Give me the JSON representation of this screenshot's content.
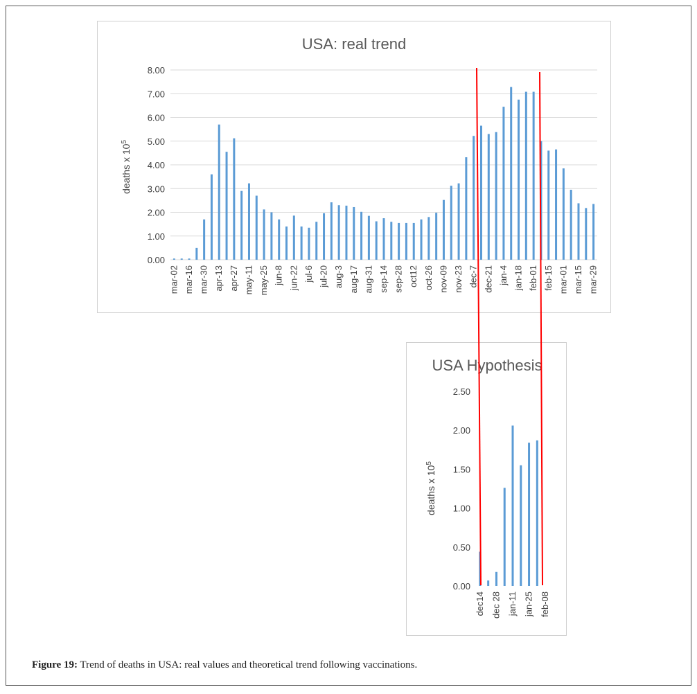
{
  "figure": {
    "caption_label": "Figure 19:",
    "caption_text": " Trend of deaths in USA: real values and theoretical trend following vaccinations."
  },
  "colors": {
    "bar": "#5b9bd5",
    "marker_line": "#ff0000",
    "grid": "#d9d9d9"
  },
  "chart_data": [
    {
      "type": "bar",
      "title": "USA: real trend",
      "xlabel": "",
      "ylabel": "deaths x 10",
      "ylabel_superscript": "5",
      "ylim": [
        0,
        8
      ],
      "ytick_step": 1,
      "ytick_labels": [
        "0.00",
        "1.00",
        "2.00",
        "3.00",
        "4.00",
        "5.00",
        "6.00",
        "7.00",
        "8.00"
      ],
      "grid": true,
      "values": [
        0.05,
        0.05,
        0.05,
        0.5,
        1.7,
        3.6,
        5.7,
        4.55,
        5.12,
        2.9,
        3.22,
        2.7,
        2.12,
        2.0,
        1.7,
        1.4,
        1.86,
        1.4,
        1.35,
        1.6,
        1.96,
        2.42,
        2.3,
        2.28,
        2.22,
        2.02,
        1.85,
        1.62,
        1.75,
        1.6,
        1.55,
        1.55,
        1.55,
        1.7,
        1.8,
        1.98,
        2.52,
        3.12,
        3.22,
        4.32,
        5.22,
        5.65,
        5.3,
        5.38,
        6.45,
        7.28,
        6.75,
        7.08,
        7.08,
        5.0,
        4.6,
        4.65,
        3.85,
        2.95,
        2.38,
        2.18,
        2.35
      ],
      "category_labels": [
        "mar-02",
        "mar-16",
        "mar-30",
        "apr-13",
        "apr-27",
        "may-11",
        "may-25",
        "jun-8",
        "jun-22",
        "jul-6",
        "jul-20",
        "aug-3",
        "aug-17",
        "aug-31",
        "sep-14",
        "sep-28",
        "oct12",
        "oct-26",
        "nov-09",
        "nov-23",
        "dec-7",
        "dec-21",
        "jan-4",
        "jan-18",
        "feb-01",
        "feb-15",
        "mar-01",
        "mar-15",
        "mar-29"
      ],
      "label_every": 2
    },
    {
      "type": "bar",
      "title": "USA Hypothesis",
      "xlabel": "",
      "ylabel": "deaths x 10",
      "ylabel_superscript": "5",
      "ylim": [
        0,
        2.5
      ],
      "ytick_step": 0.5,
      "ytick_labels": [
        "0.00",
        "0.50",
        "1.00",
        "1.50",
        "2.00",
        "2.50"
      ],
      "grid": false,
      "values": [
        0.44,
        0.07,
        0.18,
        1.26,
        2.06,
        1.55,
        1.84,
        1.87,
        0.0
      ],
      "category_labels": [
        "dec14",
        "dec 28",
        "jan-11",
        "jan-25",
        "feb-08"
      ],
      "label_every": 2
    }
  ]
}
